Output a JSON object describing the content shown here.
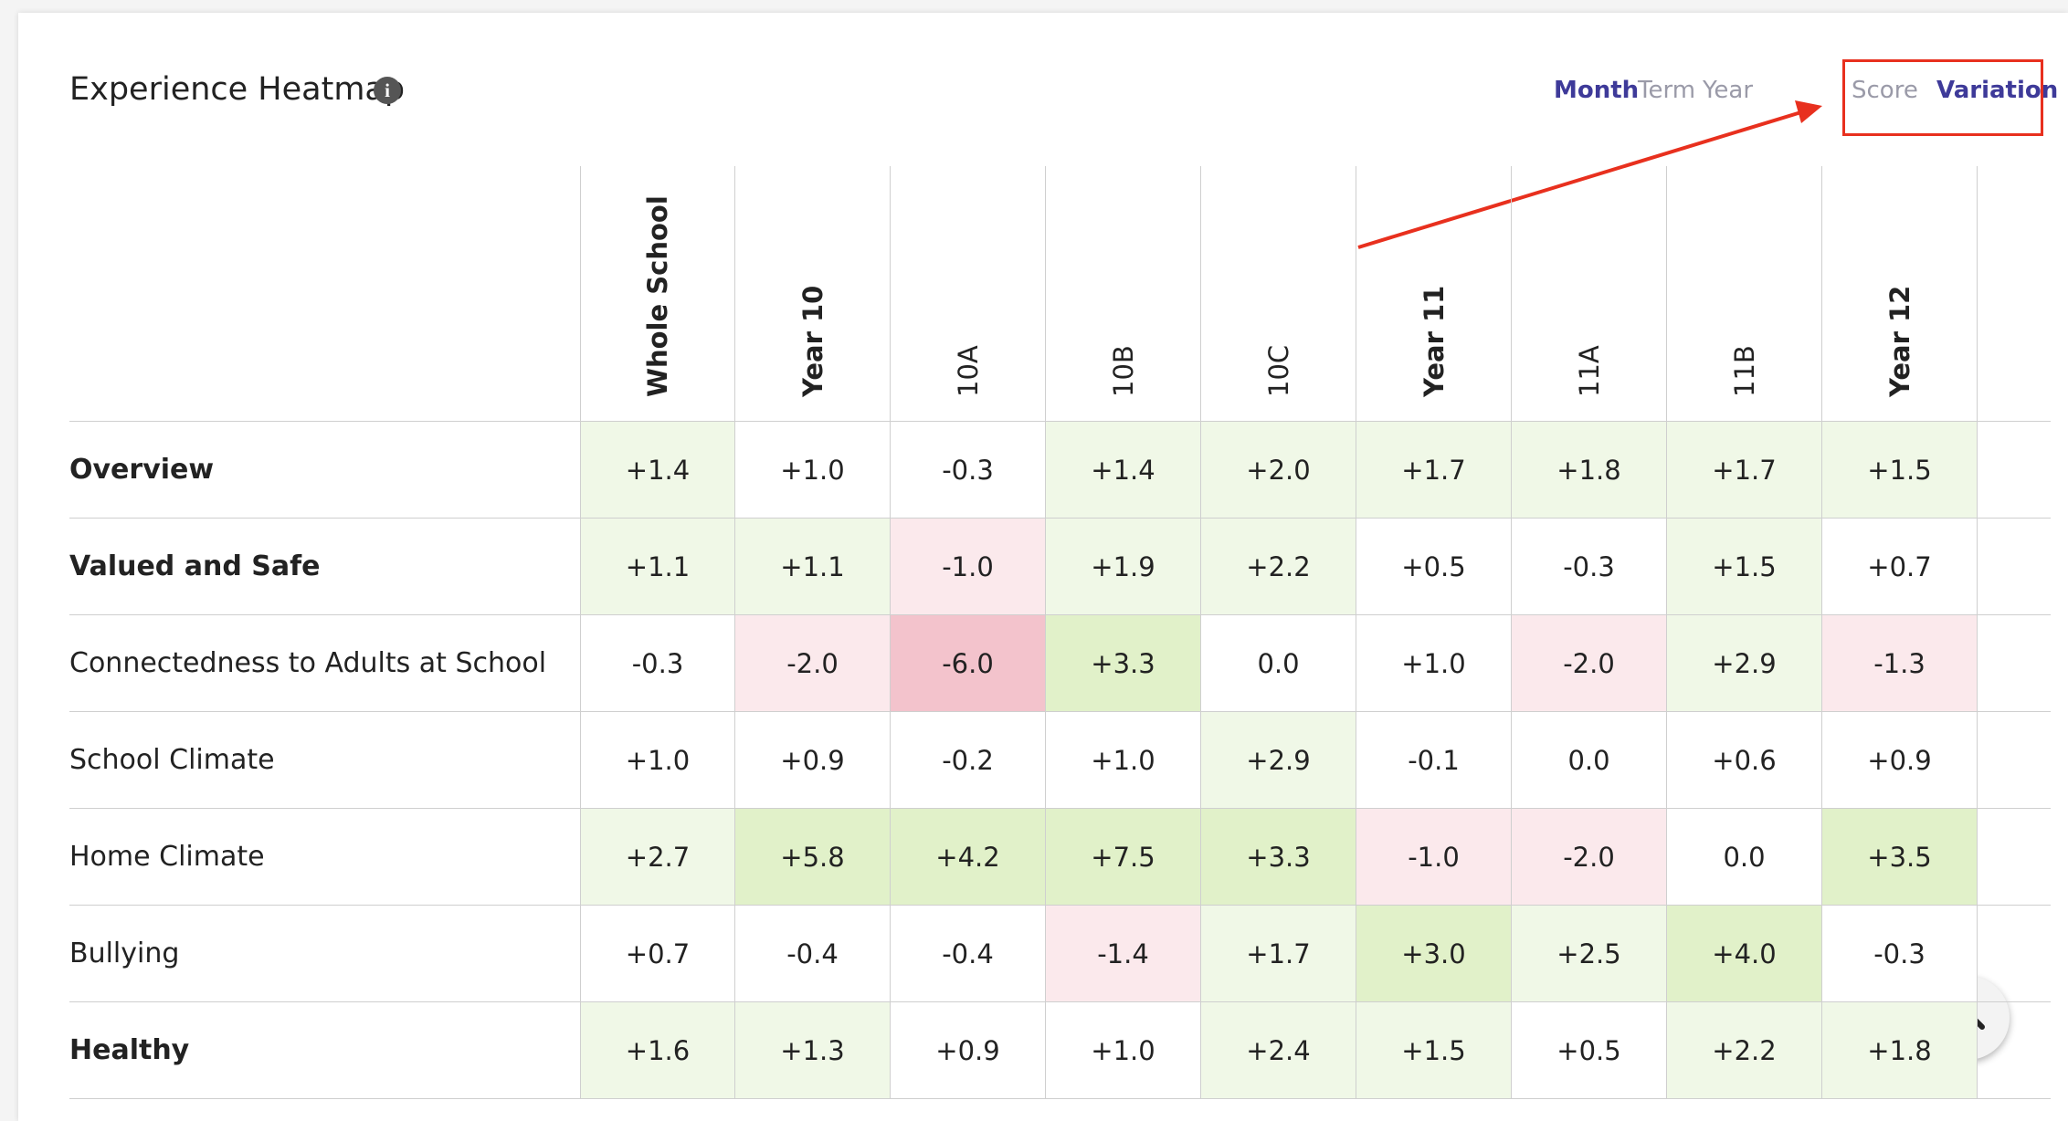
{
  "header": {
    "title": "Experience Heatmap",
    "period_tabs": [
      "Month",
      "Term",
      "Year"
    ],
    "view_tabs": [
      "Score",
      "Variation"
    ]
  },
  "table": {
    "columns": [
      "Whole School",
      "Year 10",
      "10A",
      "10B",
      "10C",
      "Year 11",
      "11A",
      "11B",
      "Year 12"
    ],
    "rows": [
      {
        "label": "Overview",
        "cells": [
          "+1.4",
          "+1.0",
          "-0.3",
          "+1.4",
          "+2.0",
          "+1.7",
          "+1.8",
          "+1.7",
          "+1.5"
        ]
      },
      {
        "label": "Valued and Safe",
        "cells": [
          "+1.1",
          "+1.1",
          "-1.0",
          "+1.9",
          "+2.2",
          "+0.5",
          "-0.3",
          "+1.5",
          "+0.7"
        ]
      },
      {
        "label": "Connectedness to Adults at School",
        "cells": [
          "-0.3",
          "-2.0",
          "-6.0",
          "+3.3",
          "0.0",
          "+1.0",
          "-2.0",
          "+2.9",
          "-1.3"
        ]
      },
      {
        "label": "School Climate",
        "cells": [
          "+1.0",
          "+0.9",
          "-0.2",
          "+1.0",
          "+2.9",
          "-0.1",
          "0.0",
          "+0.6",
          "+0.9"
        ]
      },
      {
        "label": "Home Climate",
        "cells": [
          "+2.7",
          "+5.8",
          "+4.2",
          "+7.5",
          "+3.3",
          "-1.0",
          "-2.0",
          "0.0",
          "+3.5"
        ]
      },
      {
        "label": "Bullying",
        "cells": [
          "+0.7",
          "-0.4",
          "-0.4",
          "-1.4",
          "+1.7",
          "+3.0",
          "+2.5",
          "+4.0",
          "-0.3"
        ]
      },
      {
        "label": "Healthy",
        "cells": [
          "+1.6",
          "+1.3",
          "+0.9",
          "+1.0",
          "+2.4",
          "+1.5",
          "+0.5",
          "+2.2",
          "+1.8"
        ]
      }
    ]
  }
}
